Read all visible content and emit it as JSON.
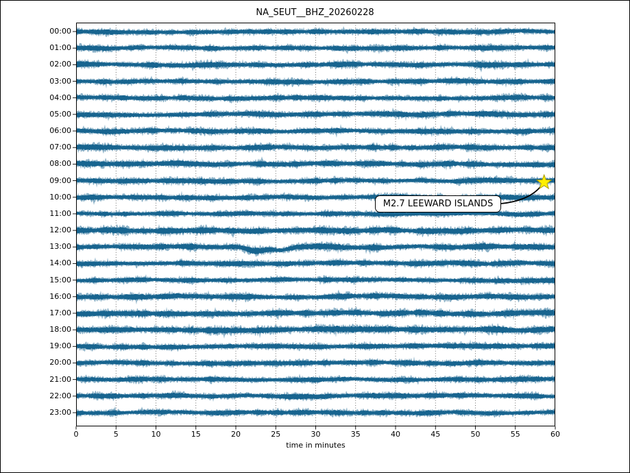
{
  "title": "NA_SEUT__BHZ_20260228",
  "xlabel": "time in minutes",
  "annotation": {
    "label": "M2.7 LEEWARD ISLANDS"
  },
  "chart_data": {
    "type": "line",
    "subtype": "helicorder-dayplot-seismogram",
    "title": "NA_SEUT__BHZ_20260228",
    "xlabel": "time in minutes",
    "x_range": [
      0,
      60
    ],
    "x_ticks": [
      0,
      5,
      10,
      15,
      20,
      25,
      30,
      35,
      40,
      45,
      50,
      55,
      60
    ],
    "rows": [
      "00:00",
      "01:00",
      "02:00",
      "03:00",
      "04:00",
      "05:00",
      "06:00",
      "07:00",
      "08:00",
      "09:00",
      "10:00",
      "11:00",
      "12:00",
      "13:00",
      "14:00",
      "15:00",
      "16:00",
      "17:00",
      "18:00",
      "19:00",
      "20:00",
      "21:00",
      "22:00",
      "23:00"
    ],
    "row_relative_amplitudes": [
      0.74,
      0.72,
      0.78,
      0.73,
      0.72,
      0.78,
      0.74,
      0.8,
      0.8,
      0.74,
      0.73,
      0.68,
      0.88,
      0.86,
      0.74,
      0.73,
      0.8,
      0.88,
      0.9,
      0.74,
      0.76,
      0.72,
      0.74,
      0.72
    ],
    "grid": "vertical dotted gridlines every 5 minutes",
    "annotations": [
      {
        "text": "M2.7 LEEWARD ISLANDS",
        "marker": "star",
        "row": "09:00",
        "minute": 58.6
      }
    ],
    "features": [
      {
        "row": "13:00",
        "minutes": [
          20.5,
          27
        ],
        "description": "low-frequency baseline dip in the noise band"
      }
    ]
  },
  "colors": {
    "trace": "#17648f",
    "star_fill": "#ffef00",
    "star_edge": "#a89a00",
    "grid": "#444444",
    "axis": "#000000",
    "background": "#ffffff",
    "annotation_bg": "#ffffff",
    "annotation_border": "#000000"
  }
}
